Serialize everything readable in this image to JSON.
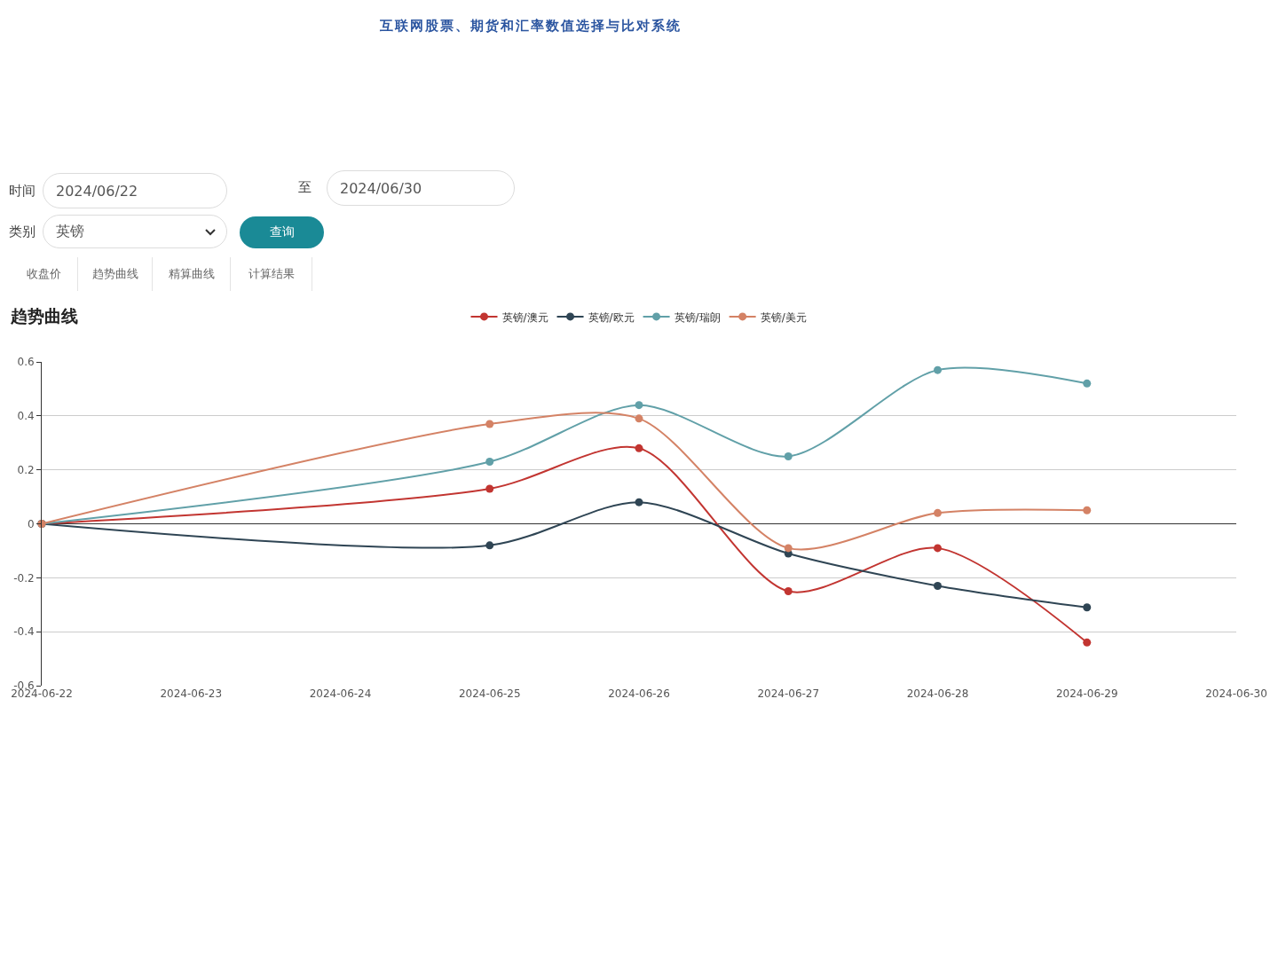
{
  "chart_data": [
    {
      "type": "other",
      "title": "互联网股票、期货和汇率数值选择与比对系统",
      "annotations": [
        "时间",
        "2024/06/22",
        "至",
        "2024/06/30",
        "类别",
        "英镑",
        "查询",
        "收盘价",
        "趋势曲线",
        "精算曲线",
        "计算结果"
      ]
    },
    {
      "type": "line",
      "title": "趋势曲线",
      "x": [
        "2024-06-22",
        "2024-06-25",
        "2024-06-26",
        "2024-06-27",
        "2024-06-28",
        "2024-06-29"
      ],
      "series": [
        {
          "name": "英镑/澳元",
          "color": "#c23531",
          "values": [
            0,
            0.13,
            0.28,
            -0.25,
            -0.09,
            -0.44
          ]
        },
        {
          "name": "英镑/欧元",
          "color": "#2f4554",
          "values": [
            0,
            -0.08,
            0.08,
            -0.11,
            -0.23,
            -0.31
          ]
        },
        {
          "name": "英镑/瑞朗",
          "color": "#61a0a8",
          "values": [
            0,
            0.23,
            0.44,
            0.25,
            0.57,
            0.52
          ]
        },
        {
          "name": "英镑/美元",
          "color": "#d48265",
          "values": [
            0,
            0.37,
            0.39,
            -0.09,
            0.04,
            0.05
          ]
        }
      ],
      "xlim": [
        "2024-06-22",
        "2024-06-30"
      ],
      "xticks": [
        "2024-06-22",
        "2024-06-23",
        "2024-06-24",
        "2024-06-25",
        "2024-06-26",
        "2024-06-27",
        "2024-06-28",
        "2024-06-29",
        "2024-06-30"
      ],
      "ylim": [
        -0.6,
        0.6
      ],
      "yticks": [
        -0.6,
        -0.4,
        -0.2,
        0,
        0.2,
        0.4,
        0.6
      ],
      "grid": "y",
      "legend": "top",
      "marker": "circle"
    }
  ]
}
